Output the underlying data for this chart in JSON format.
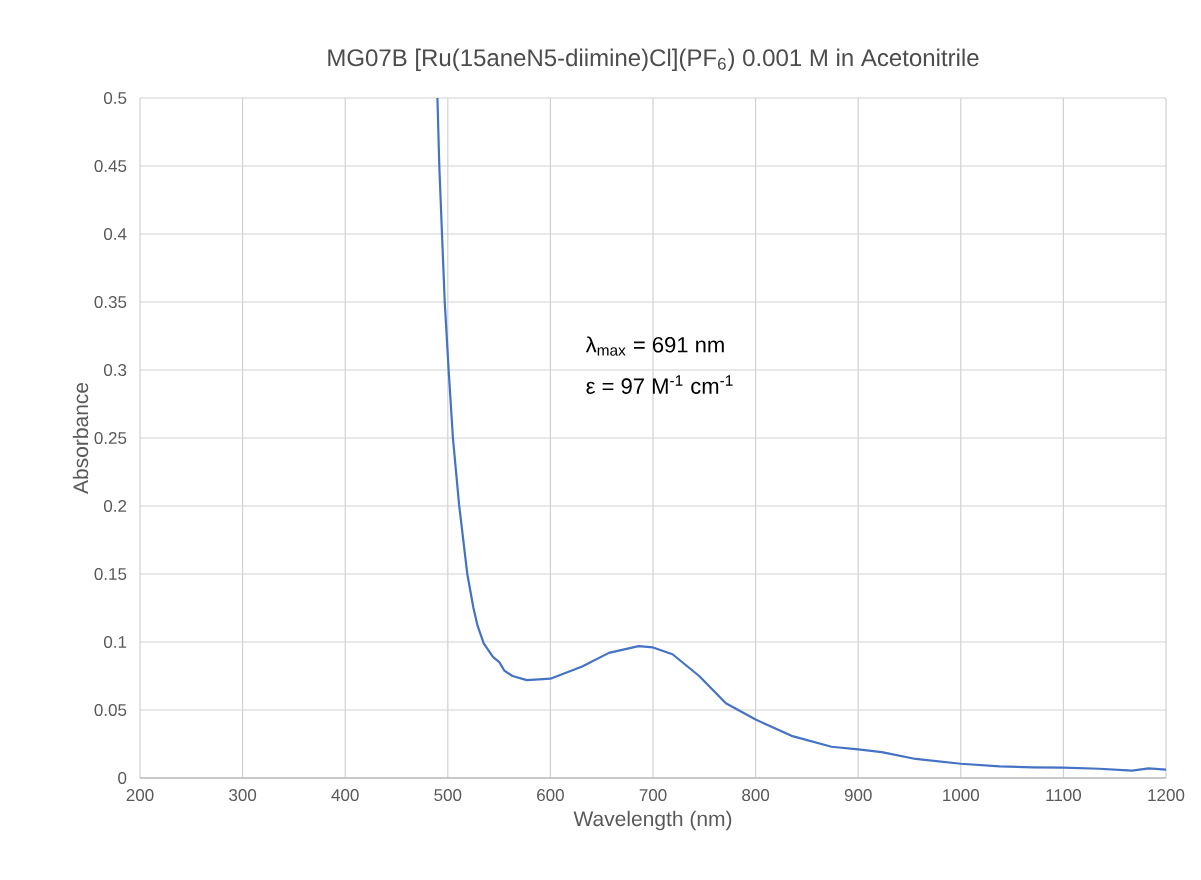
{
  "chart_data": {
    "type": "line",
    "title": "MG07B [Ru(15aneN5-diimine)Cl](PF$_{6}$) 0.001 M in Acetonitrile",
    "xlabel": "Wavelength (nm)",
    "ylabel": "Absorbance",
    "annotations": [
      "λ$_{max}$ = 691 nm",
      "ε = 97 M$^{-1}$ cm$^{-1}$"
    ],
    "x": [
      489.9,
      491.7,
      494.3,
      497,
      500.9,
      505,
      511,
      519,
      525,
      529,
      535,
      544,
      550.4,
      555,
      563,
      577,
      600,
      631,
      657,
      686,
      700,
      719,
      745,
      771,
      800,
      835,
      874,
      900,
      923,
      956,
      1000,
      1038,
      1070,
      1100,
      1135,
      1167,
      1183,
      1200
    ],
    "series": [
      {
        "color": "#4472c4",
        "values": [
          0.5,
          0.45,
          0.401,
          0.35,
          0.299,
          0.25,
          0.201,
          0.15,
          0.125,
          0.112,
          0.099,
          0.089,
          0.085,
          0.079,
          0.075,
          0.072,
          0.073,
          0.082,
          0.092,
          0.097,
          0.096,
          0.091,
          0.075,
          0.055,
          0.043,
          0.031,
          0.023,
          0.021,
          0.019,
          0.014,
          0.0105,
          0.0085,
          0.0078,
          0.0076,
          0.0068,
          0.0054,
          0.0071,
          0.0061
        ]
      }
    ],
    "xlim": [
      200,
      1200
    ],
    "ylim": [
      0,
      0.5
    ],
    "xticks": [
      200,
      300,
      400,
      500,
      600,
      700,
      800,
      900,
      1000,
      1100,
      1200
    ],
    "yticks": [
      0,
      0.05,
      0.1,
      0.15,
      0.2,
      0.25,
      0.3,
      0.35,
      0.4,
      0.45,
      0.5
    ],
    "grid": true,
    "marker": "none",
    "line_style": "solid"
  }
}
